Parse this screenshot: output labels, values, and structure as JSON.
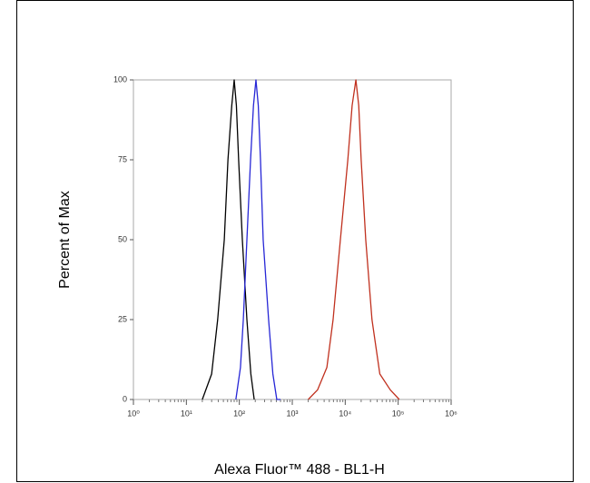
{
  "chart_data": {
    "type": "histogram-overlay",
    "xlabel": "Alexa Fluor™ 488 - BL1-H",
    "ylabel": "Percent of Max",
    "xscale": "log",
    "xlim": [
      1,
      1000000
    ],
    "xticks": [
      {
        "value": 1,
        "label": "10⁰"
      },
      {
        "value": 10,
        "label": "10¹"
      },
      {
        "value": 100,
        "label": "10²"
      },
      {
        "value": 1000,
        "label": "10³"
      },
      {
        "value": 10000,
        "label": "10⁴"
      },
      {
        "value": 100000,
        "label": "10⁵"
      },
      {
        "value": 1000000,
        "label": "10⁶"
      }
    ],
    "x_minor_ticks": [
      2,
      3,
      4,
      5,
      6,
      7,
      8,
      9,
      20,
      30,
      40,
      50,
      60,
      70,
      80,
      90,
      200,
      300,
      400,
      500,
      600,
      700,
      800,
      900,
      2000,
      3000,
      4000,
      5000,
      6000,
      7000,
      8000,
      9000,
      20000,
      30000,
      40000,
      50000,
      60000,
      70000,
      80000,
      90000,
      200000,
      300000,
      400000,
      500000,
      600000,
      700000,
      800000,
      900000
    ],
    "ylim": [
      0,
      100
    ],
    "yticks": [
      0,
      25,
      50,
      75,
      100
    ],
    "series": [
      {
        "color": "#000000",
        "x": [
          20,
          30,
          39,
          52,
          61,
          72,
          80,
          88,
          97,
          114,
          139,
          165,
          191
        ],
        "values": [
          0,
          8,
          25,
          50,
          75,
          92,
          100,
          92,
          75,
          50,
          25,
          8,
          0
        ]
      },
      {
        "color": "#2626d6",
        "x": [
          86,
          105,
          119,
          139,
          163,
          185,
          206,
          228,
          251,
          282,
          357,
          430,
          510,
          600
        ],
        "values": [
          0,
          10,
          25,
          50,
          75,
          92,
          100,
          92,
          75,
          50,
          25,
          8,
          0,
          0
        ]
      },
      {
        "color": "#c0301e",
        "x": [
          2000,
          3000,
          4500,
          5900,
          8100,
          11200,
          13500,
          15900,
          18000,
          20000,
          24400,
          32000,
          45000,
          71000,
          105000
        ],
        "values": [
          0,
          3,
          10,
          25,
          50,
          75,
          92,
          100,
          92,
          75,
          50,
          25,
          8,
          3,
          0
        ]
      }
    ]
  }
}
